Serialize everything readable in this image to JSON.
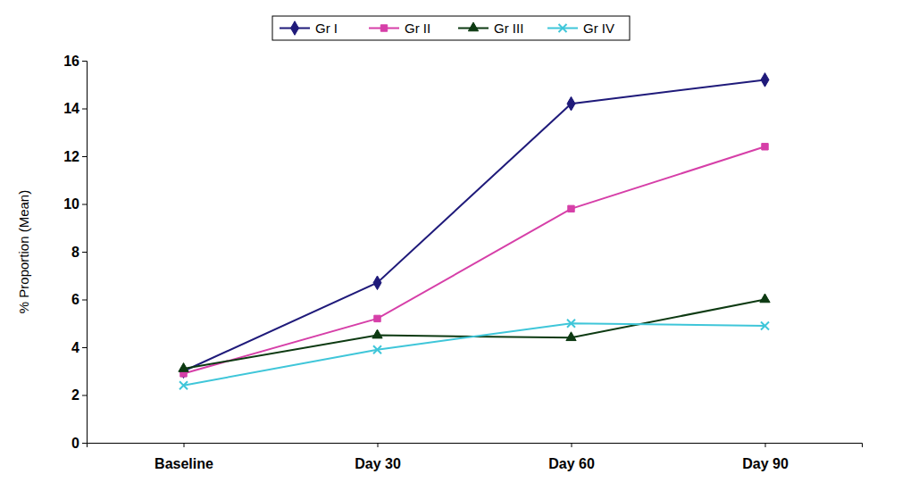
{
  "chart_data": {
    "type": "line",
    "y_label": "% Proportion (Mean)",
    "categories": [
      "Baseline",
      "Day 30",
      "Day 60",
      "Day 90"
    ],
    "series": [
      {
        "name": "Gr I",
        "color": "#1f1a7a",
        "marker": "diamond",
        "values": [
          3.0,
          6.7,
          14.2,
          15.2
        ]
      },
      {
        "name": "Gr II",
        "color": "#d63fa8",
        "marker": "square",
        "values": [
          2.9,
          5.2,
          9.8,
          12.4
        ]
      },
      {
        "name": "Gr III",
        "color": "#0d3a12",
        "marker": "triangle",
        "values": [
          3.1,
          4.5,
          4.4,
          6.0
        ]
      },
      {
        "name": "Gr IV",
        "color": "#3fc6d9",
        "marker": "x",
        "values": [
          2.4,
          3.9,
          5.0,
          4.9
        ]
      }
    ],
    "ylim": [
      0,
      16
    ],
    "yticks": [
      0,
      2,
      4,
      6,
      8,
      10,
      12,
      14,
      16
    ],
    "grid": false,
    "legend": "top"
  }
}
